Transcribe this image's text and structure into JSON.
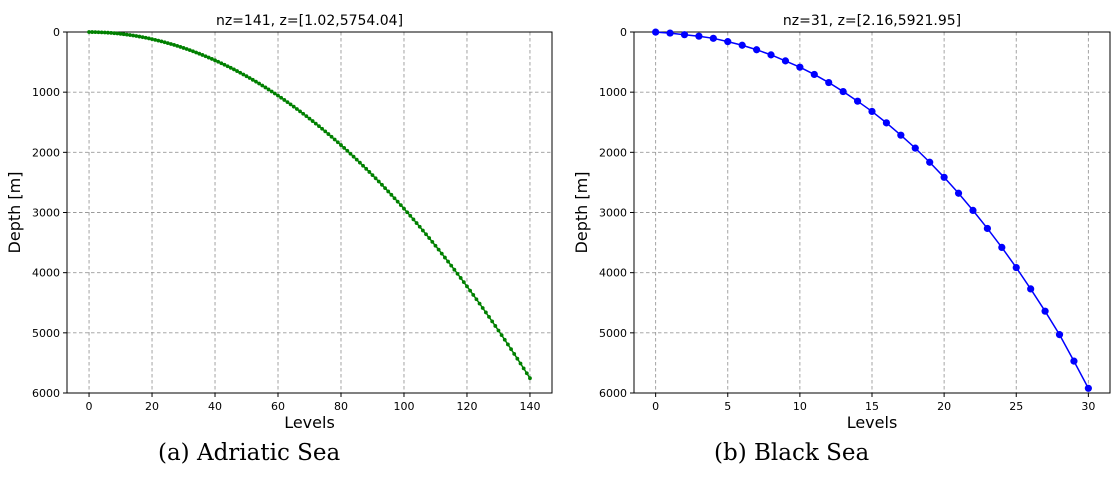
{
  "chart_data": [
    {
      "type": "line",
      "title": "nz=141, z=[1.02,5754.04]",
      "xlabel": "Levels",
      "ylabel": "Depth [m]",
      "xlim": [
        -7,
        147
      ],
      "ylim": [
        6000,
        0
      ],
      "y_inverted": true,
      "xticks": [
        0,
        20,
        40,
        60,
        80,
        100,
        120,
        140
      ],
      "yticks": [
        0,
        1000,
        2000,
        3000,
        4000,
        5000,
        6000
      ],
      "grid": true,
      "color": "#008000",
      "marker": "small-dot",
      "nz": 141,
      "z_min": 1.02,
      "z_max": 5754.04,
      "curve": "quadratic",
      "caption": "(a) Adriatic Sea"
    },
    {
      "type": "line",
      "title": "nz=31, z=[2.16,5921.95]",
      "xlabel": "Levels",
      "ylabel": "Depth [m]",
      "xlim": [
        -1.5,
        31.5
      ],
      "ylim": [
        6000,
        0
      ],
      "y_inverted": true,
      "xticks": [
        0,
        5,
        10,
        15,
        20,
        25,
        30
      ],
      "yticks": [
        0,
        1000,
        2000,
        3000,
        4000,
        5000,
        6000
      ],
      "grid": true,
      "color": "#0000ff",
      "marker": "large-dot",
      "levels": [
        0,
        1,
        2,
        3,
        4,
        5,
        6,
        7,
        8,
        9,
        10,
        11,
        12,
        13,
        14,
        15,
        16,
        17,
        18,
        19,
        20,
        21,
        22,
        23,
        24,
        25,
        26,
        27,
        28,
        29,
        30
      ],
      "depths": [
        2.16,
        18,
        45,
        70,
        105,
        160,
        220,
        295,
        380,
        480,
        585,
        705,
        840,
        990,
        1150,
        1320,
        1510,
        1715,
        1930,
        2165,
        2415,
        2680,
        2965,
        3265,
        3580,
        3915,
        4270,
        4640,
        5030,
        5470,
        5921.95
      ],
      "caption": "(b) Black Sea"
    }
  ]
}
